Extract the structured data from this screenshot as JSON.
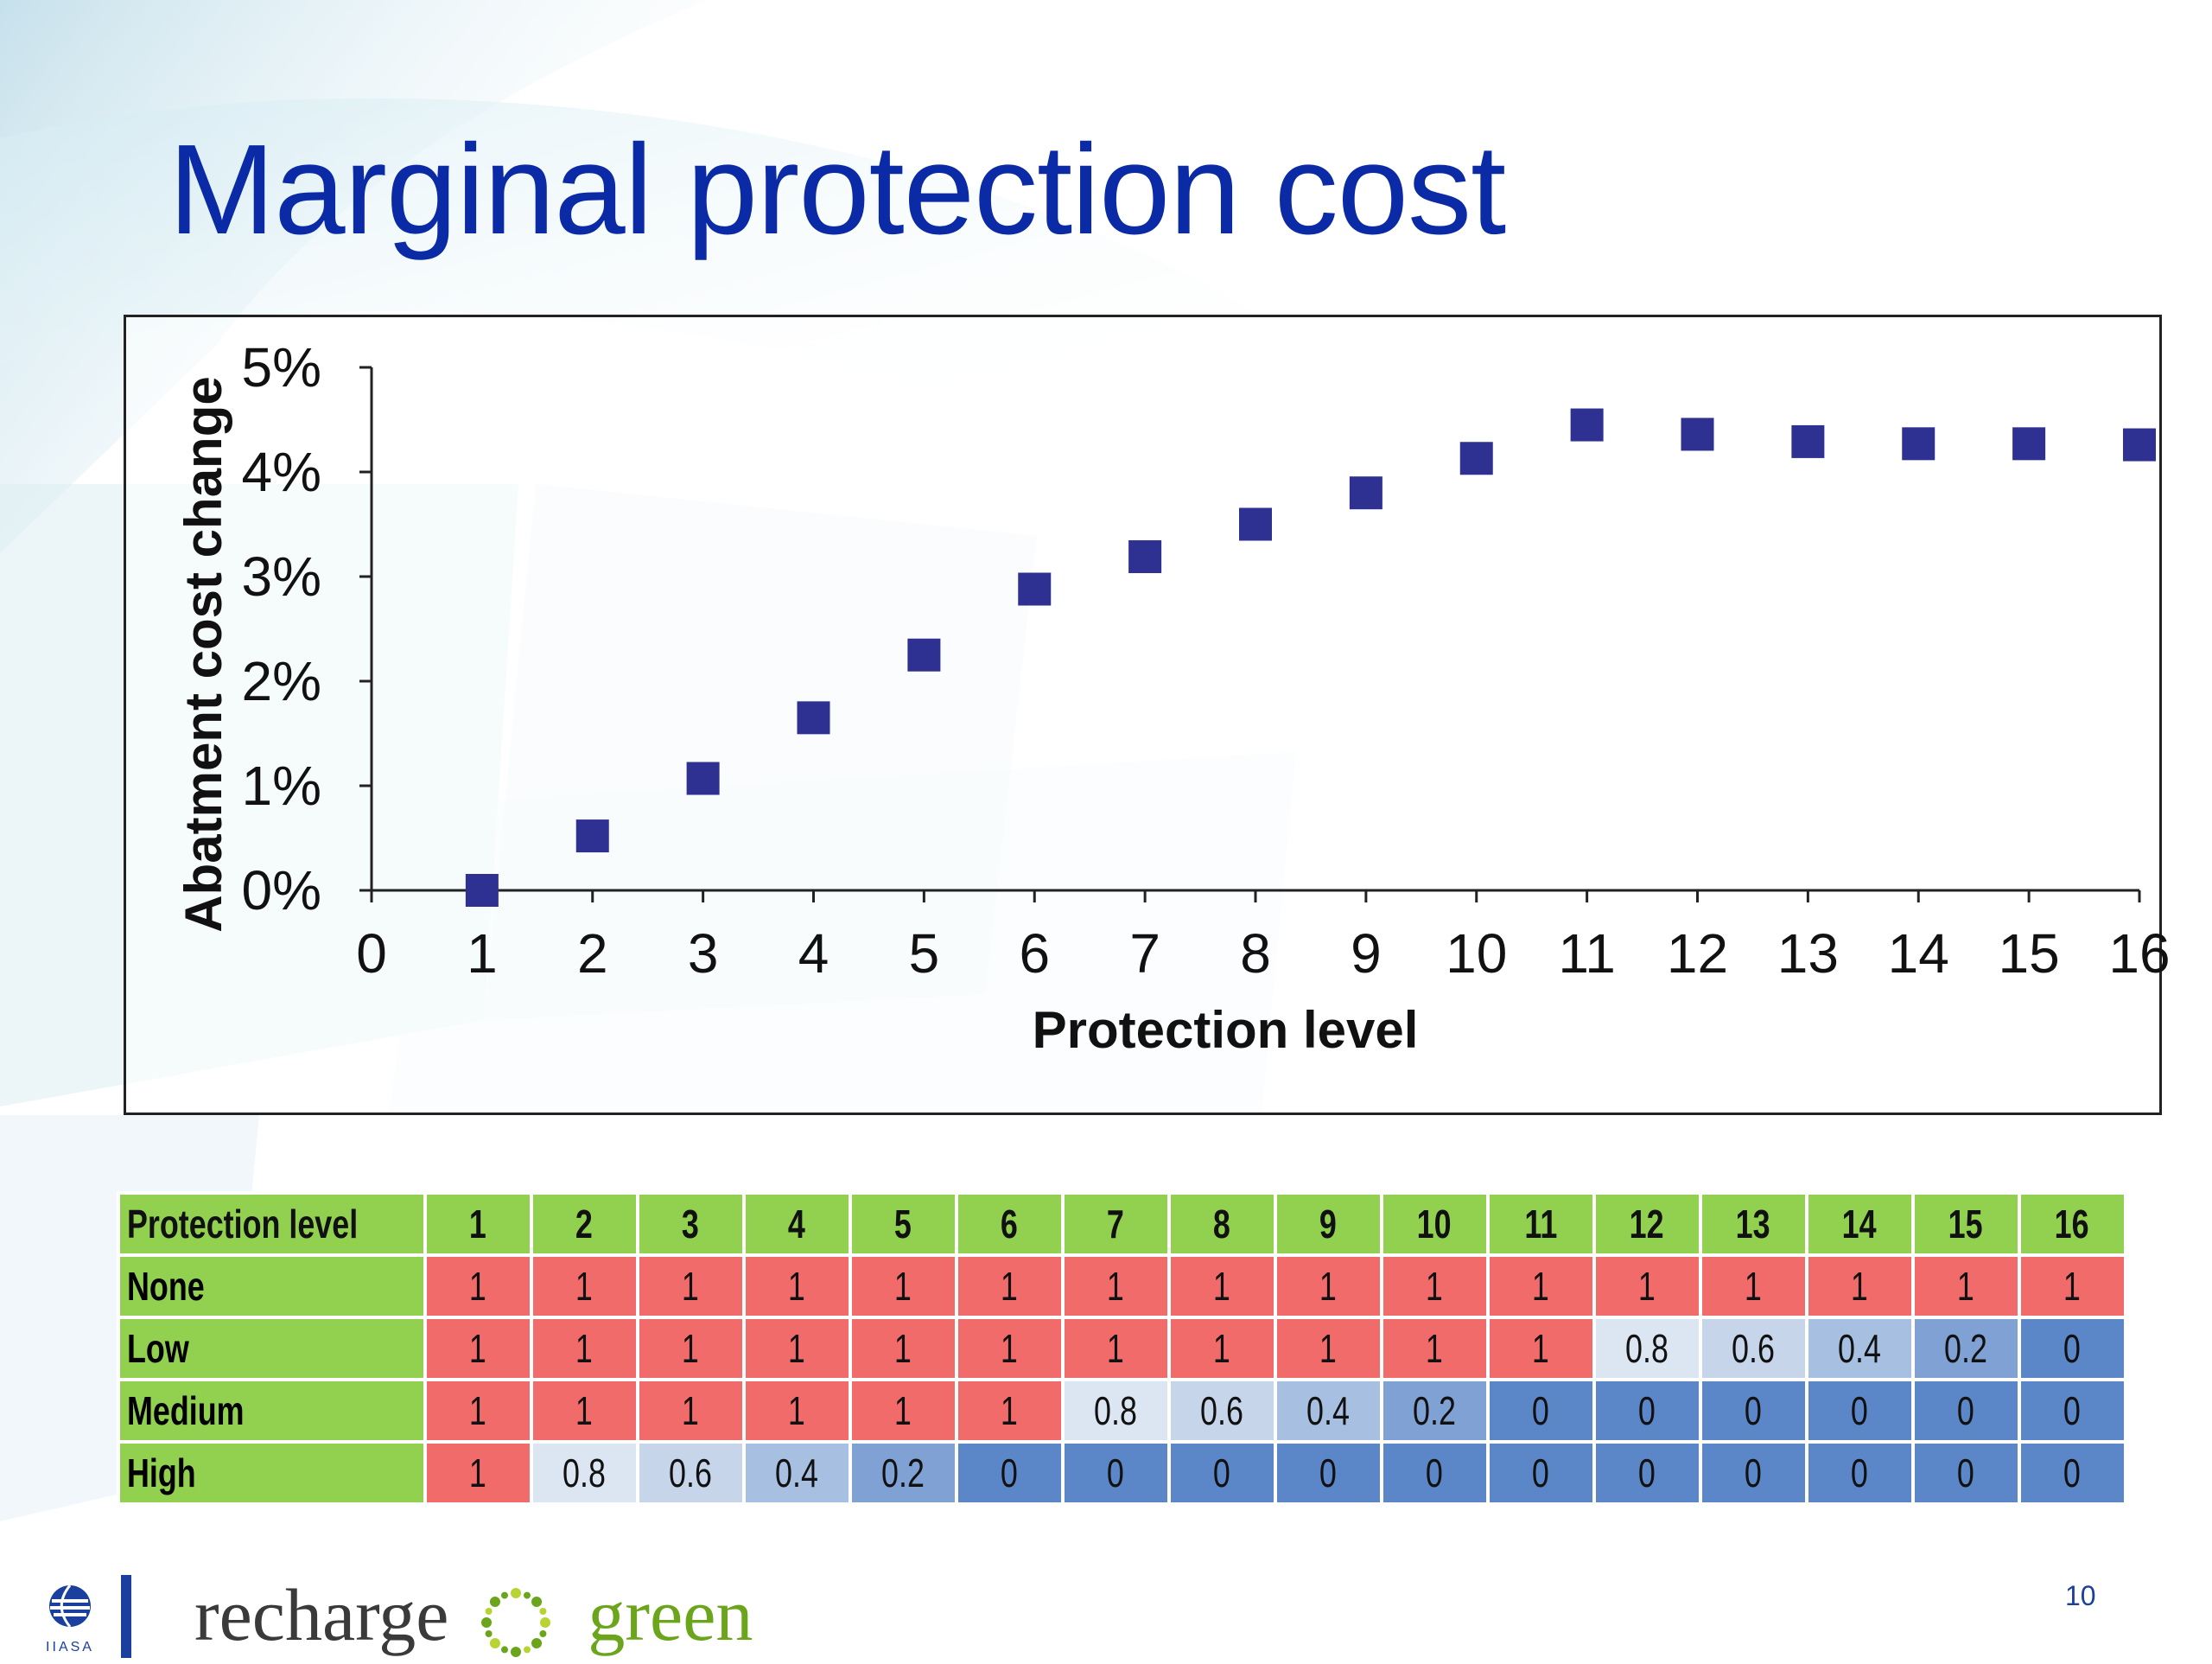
{
  "slide": {
    "title": "Marginal protection cost",
    "page_number": "10",
    "brand": {
      "part1": "recharge",
      "part2": "green"
    },
    "iiasa_label": "IIASA"
  },
  "colors": {
    "title": "#0a2aa6",
    "marker": "#2e3192",
    "header_green": "#92d050",
    "value_1": "#f26b6b",
    "value_0_8": "#dce6f2",
    "value_0_6": "#c6d5ea",
    "value_0_4": "#a7bfe0",
    "value_0_2": "#7fa1d3",
    "value_0": "#5b86c7"
  },
  "chart_data": {
    "type": "scatter",
    "title": "",
    "xlabel": "Protection level",
    "ylabel": "Abatment cost change",
    "xlim": [
      0,
      16
    ],
    "ylim": [
      0,
      5
    ],
    "x_ticks": [
      "0",
      "1",
      "2",
      "3",
      "4",
      "5",
      "6",
      "7",
      "8",
      "9",
      "10",
      "11",
      "12",
      "13",
      "14",
      "15",
      "16"
    ],
    "y_ticks": [
      "0%",
      "1%",
      "2%",
      "3%",
      "4%",
      "5%"
    ],
    "grid": false,
    "legend": "none",
    "series": [
      {
        "marker": "square",
        "x": [
          1,
          2,
          3,
          4,
          5,
          6,
          7,
          8,
          9,
          10,
          11,
          12,
          13,
          14,
          15,
          16
        ],
        "y": [
          0.0,
          0.52,
          1.07,
          1.65,
          2.25,
          2.88,
          3.19,
          3.5,
          3.8,
          4.13,
          4.45,
          4.36,
          4.29,
          4.27,
          4.27,
          4.26
        ]
      }
    ]
  },
  "table": {
    "header_label": "Protection level",
    "levels": [
      "1",
      "2",
      "3",
      "4",
      "5",
      "6",
      "7",
      "8",
      "9",
      "10",
      "11",
      "12",
      "13",
      "14",
      "15",
      "16"
    ],
    "rows": [
      {
        "label": "None",
        "values": [
          "1",
          "1",
          "1",
          "1",
          "1",
          "1",
          "1",
          "1",
          "1",
          "1",
          "1",
          "1",
          "1",
          "1",
          "1",
          "1"
        ]
      },
      {
        "label": "Low",
        "values": [
          "1",
          "1",
          "1",
          "1",
          "1",
          "1",
          "1",
          "1",
          "1",
          "1",
          "1",
          "0.8",
          "0.6",
          "0.4",
          "0.2",
          "0"
        ]
      },
      {
        "label": "Medium",
        "values": [
          "1",
          "1",
          "1",
          "1",
          "1",
          "1",
          "0.8",
          "0.6",
          "0.4",
          "0.2",
          "0",
          "0",
          "0",
          "0",
          "0",
          "0"
        ]
      },
      {
        "label": "High",
        "values": [
          "1",
          "0.8",
          "0.6",
          "0.4",
          "0.2",
          "0",
          "0",
          "0",
          "0",
          "0",
          "0",
          "0",
          "0",
          "0",
          "0",
          "0"
        ]
      }
    ]
  }
}
